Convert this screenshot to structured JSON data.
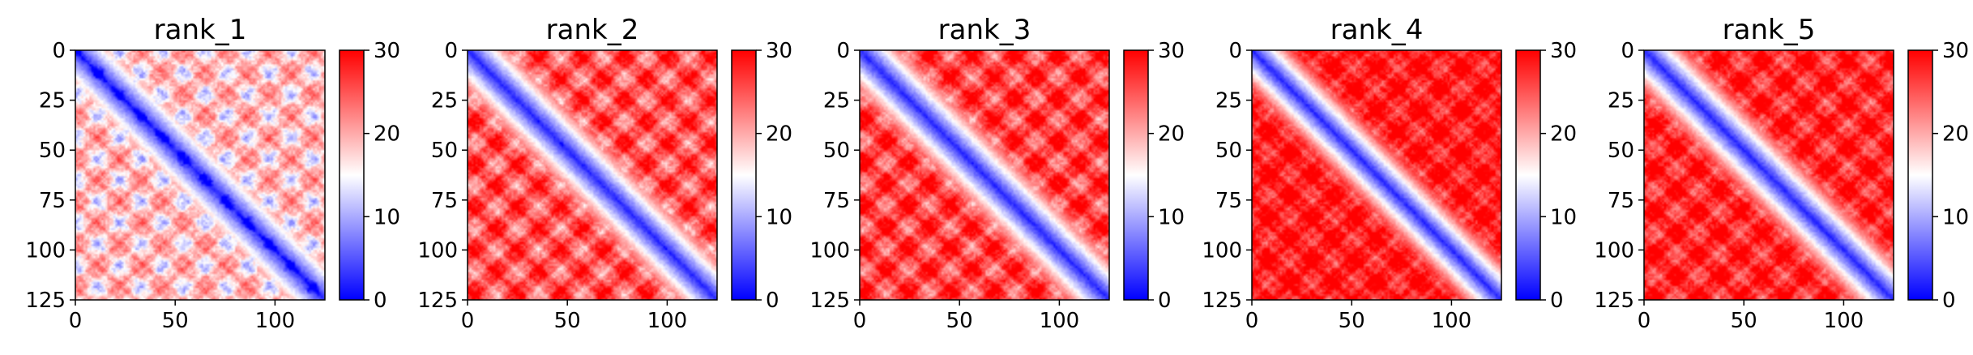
{
  "chart_data": [
    {
      "type": "heatmap",
      "title": "rank_1",
      "xlim": [
        0,
        125
      ],
      "ylim": [
        125,
        0
      ],
      "x_ticks": [
        "0",
        "50",
        "100"
      ],
      "y_ticks": [
        "0",
        "25",
        "50",
        "75",
        "100",
        "125"
      ],
      "colorbar": {
        "min": 0,
        "max": 30,
        "ticks": [
          "0",
          "10",
          "20",
          "30"
        ],
        "colormap": "bwr"
      },
      "pattern": {
        "period": 21.5,
        "phase": 0,
        "bias": -2.2,
        "diag_width": 3.2,
        "blob_blue": 0.95,
        "blob_red": 0.55
      }
    },
    {
      "type": "heatmap",
      "title": "rank_2",
      "xlim": [
        0,
        125
      ],
      "ylim": [
        125,
        0
      ],
      "x_ticks": [
        "0",
        "50",
        "100"
      ],
      "y_ticks": [
        "0",
        "25",
        "50",
        "75",
        "100",
        "125"
      ],
      "colorbar": {
        "min": 0,
        "max": 30,
        "ticks": [
          "0",
          "10",
          "20",
          "30"
        ],
        "colormap": "bwr"
      },
      "pattern": {
        "period": 21.5,
        "phase": 3,
        "bias": 3.5,
        "diag_width": 3.0,
        "blob_blue": 0.65,
        "blob_red": 0.85
      }
    },
    {
      "type": "heatmap",
      "title": "rank_3",
      "xlim": [
        0,
        125
      ],
      "ylim": [
        125,
        0
      ],
      "x_ticks": [
        "0",
        "50",
        "100"
      ],
      "y_ticks": [
        "0",
        "25",
        "50",
        "75",
        "100",
        "125"
      ],
      "colorbar": {
        "min": 0,
        "max": 30,
        "ticks": [
          "0",
          "10",
          "20",
          "30"
        ],
        "colormap": "bwr"
      },
      "pattern": {
        "period": 21.5,
        "phase": 2,
        "bias": 4.5,
        "diag_width": 3.0,
        "blob_blue": 0.6,
        "blob_red": 0.85
      }
    },
    {
      "type": "heatmap",
      "title": "rank_4",
      "xlim": [
        0,
        125
      ],
      "ylim": [
        125,
        0
      ],
      "x_ticks": [
        "0",
        "50",
        "100"
      ],
      "y_ticks": [
        "0",
        "25",
        "50",
        "75",
        "100",
        "125"
      ],
      "colorbar": {
        "min": 0,
        "max": 30,
        "ticks": [
          "0",
          "10",
          "20",
          "30"
        ],
        "colormap": "bwr"
      },
      "pattern": {
        "period": 21.5,
        "phase": 8,
        "bias": 6.5,
        "diag_width": 2.6,
        "blob_blue": 0.35,
        "blob_red": 0.7
      }
    },
    {
      "type": "heatmap",
      "title": "rank_5",
      "xlim": [
        0,
        125
      ],
      "ylim": [
        125,
        0
      ],
      "x_ticks": [
        "0",
        "50",
        "100"
      ],
      "y_ticks": [
        "0",
        "25",
        "50",
        "75",
        "100",
        "125"
      ],
      "colorbar": {
        "min": 0,
        "max": 30,
        "ticks": [
          "0",
          "10",
          "20",
          "30"
        ],
        "colormap": "bwr"
      },
      "pattern": {
        "period": 21.5,
        "phase": 5,
        "bias": 6.0,
        "diag_width": 2.8,
        "blob_blue": 0.45,
        "blob_red": 0.75
      }
    }
  ]
}
